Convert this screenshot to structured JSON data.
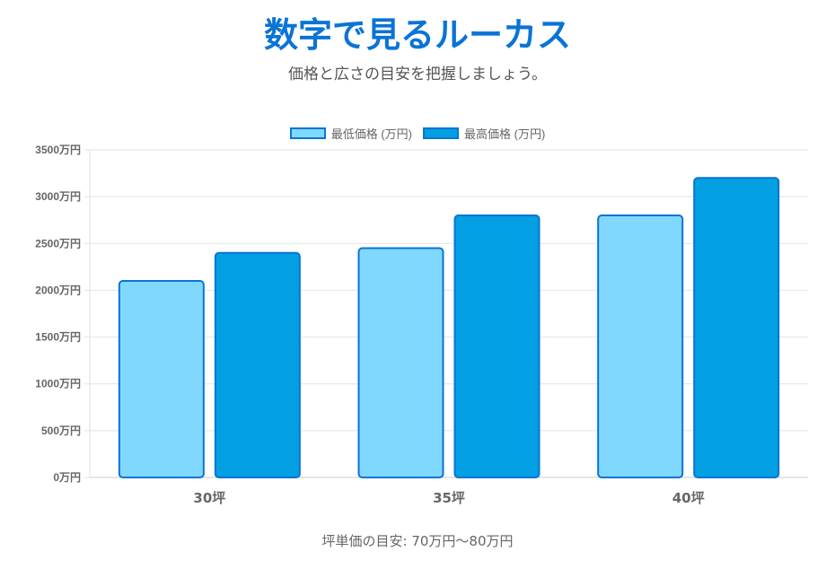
{
  "header": {
    "title": "数字で見るルーカス",
    "subtitle": "価格と広さの目安を把握しましょう。"
  },
  "chart_data": {
    "type": "bar",
    "categories": [
      "30坪",
      "35坪",
      "40坪"
    ],
    "series": [
      {
        "name": "最低価格 (万円)",
        "values": [
          2100,
          2450,
          2800
        ],
        "color": "#80d8ff"
      },
      {
        "name": "最高価格 (万円)",
        "values": [
          2400,
          2800,
          3200
        ],
        "color": "#039fe3"
      }
    ],
    "border_color": "#0a74d6",
    "ylim": [
      0,
      3500
    ],
    "yticks": [
      0,
      500,
      1000,
      1500,
      2000,
      2500,
      3000,
      3500
    ],
    "ytick_suffix": "万円",
    "grid": true,
    "legend": "top"
  },
  "footer": {
    "note": "坪単価の目安: 70万円〜80万円"
  }
}
